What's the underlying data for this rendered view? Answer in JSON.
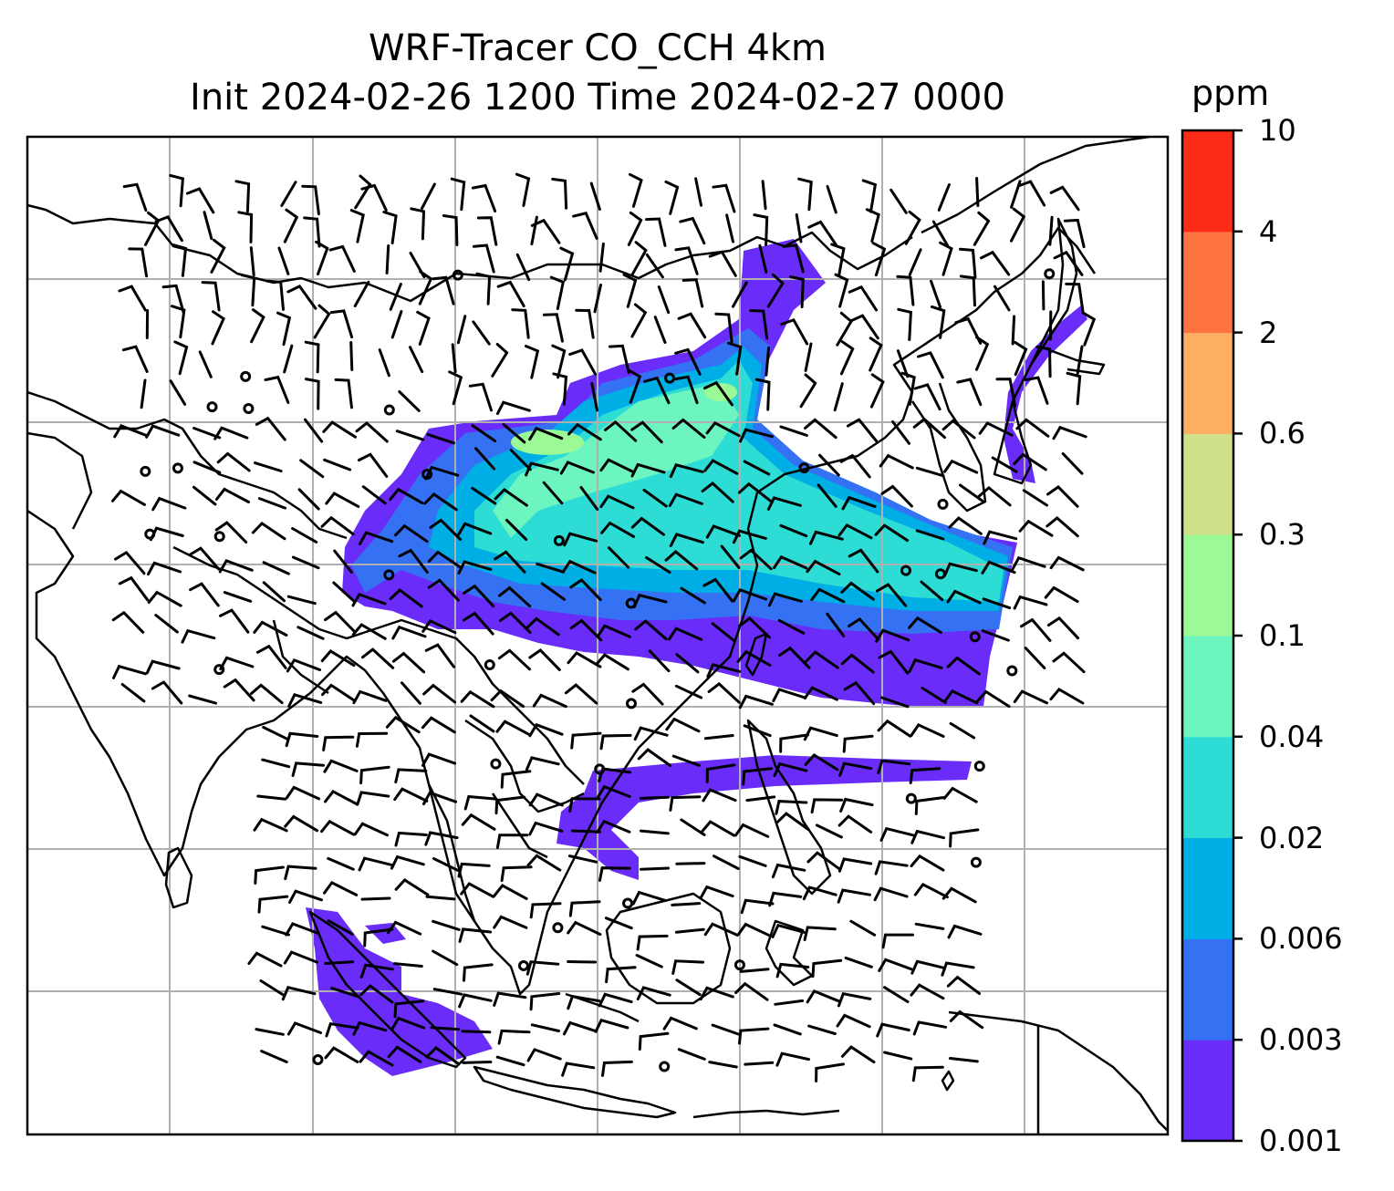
{
  "title": {
    "line1": "WRF-Tracer CO_CCH 4km",
    "line2": "Init 2024-02-26 1200 Time 2024-02-27 0000"
  },
  "colorbar": {
    "unit": "ppm",
    "levels": [
      "0.001",
      "0.003",
      "0.006",
      "0.02",
      "0.04",
      "0.1",
      "0.3",
      "0.6",
      "2",
      "4",
      "10"
    ],
    "colors": [
      "#6a2cf8",
      "#3471f3",
      "#00aee6",
      "#2edcd6",
      "#6df5c0",
      "#9cfa96",
      "#cfe08a",
      "#fdae62",
      "#fe7440",
      "#fb2b18"
    ]
  },
  "map": {
    "field": "CO_CCH tracer concentration",
    "grid": true,
    "coastlines": true,
    "wind_barbs": true
  }
}
